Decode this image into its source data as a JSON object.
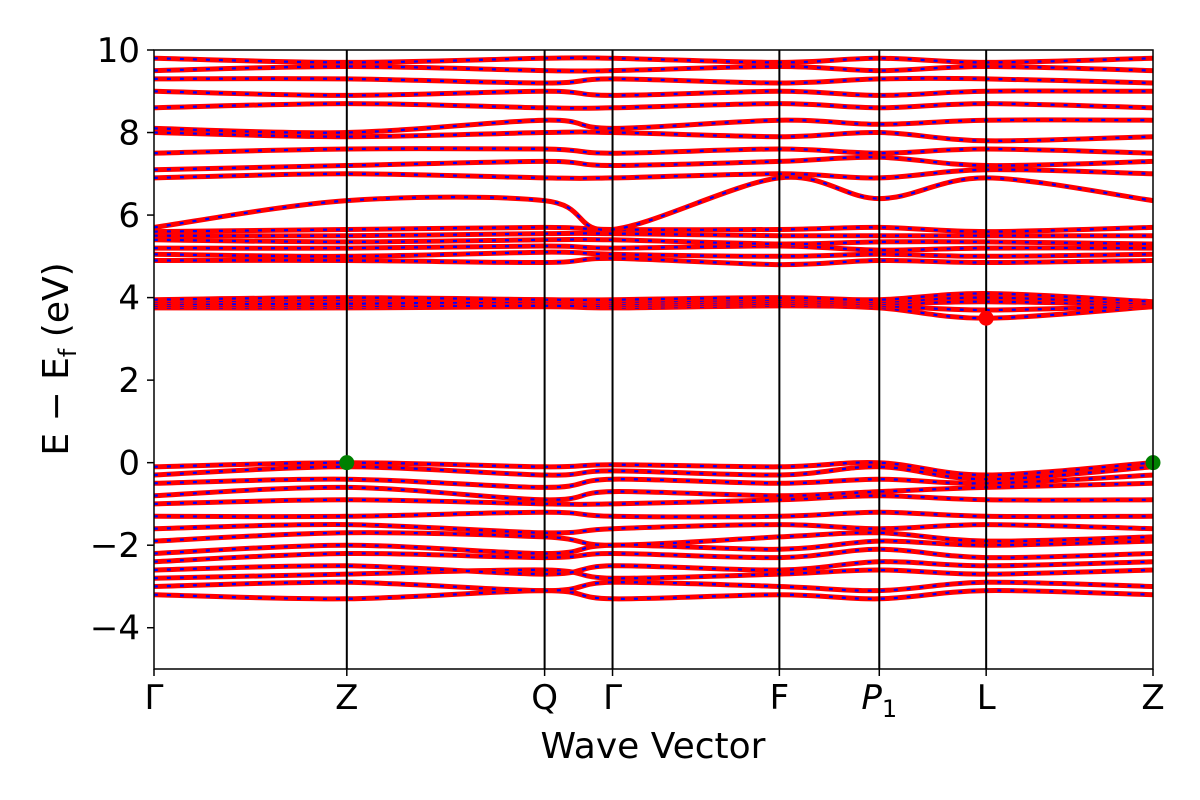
{
  "chart_data": {
    "type": "line",
    "title": "",
    "xlabel": "Wave Vector",
    "ylabel": "E − E_f (eV)",
    "ylabel_main": "E − E",
    "ylabel_sub": "f",
    "ylabel_unit": " (eV)",
    "ylim": [
      -5,
      10
    ],
    "yticks": [
      -4,
      -2,
      0,
      2,
      4,
      6,
      8,
      10
    ],
    "ytick_labels": [
      "−4",
      "−2",
      "0",
      "2",
      "4",
      "6",
      "8",
      "10"
    ],
    "kpath": {
      "labels": [
        "Γ",
        "Z",
        "Q",
        "Γ",
        "F",
        "P",
        "L",
        "Z"
      ],
      "positions": [
        0,
        0.193,
        0.391,
        0.459,
        0.626,
        0.726,
        0.833,
        1.0
      ],
      "label_subscripts": [
        "",
        "",
        "",
        "",
        "",
        "1",
        "",
        ""
      ]
    },
    "grid": false,
    "series_colors": {
      "primary": "#ff0000",
      "secondary": "#0000ff"
    },
    "markers": [
      {
        "name": "valence band maximum",
        "color": "#008000",
        "x_label": "Z",
        "x": 0.193,
        "y": 0.0
      },
      {
        "name": "valence band maximum",
        "color": "#008000",
        "x_label": "Z",
        "x": 1.0,
        "y": 0.0
      },
      {
        "name": "conduction band minimum",
        "color": "#ff0000",
        "x_label": "L",
        "x": 0.833,
        "y": 3.5
      }
    ],
    "bands": [
      {
        "ys": [
          -3.2,
          -3.3,
          -3.1,
          -3.3,
          -3.2,
          -3.3,
          -3.1,
          -3.2
        ]
      },
      {
        "ys": [
          -3.0,
          -2.9,
          -3.1,
          -2.9,
          -3.0,
          -3.1,
          -2.9,
          -3.0
        ]
      },
      {
        "ys": [
          -2.8,
          -2.7,
          -2.6,
          -2.8,
          -2.7,
          -2.6,
          -2.7,
          -2.6
        ]
      },
      {
        "ys": [
          -2.6,
          -2.5,
          -2.7,
          -2.5,
          -2.6,
          -2.4,
          -2.5,
          -2.4
        ]
      },
      {
        "ys": [
          -2.4,
          -2.2,
          -2.3,
          -2.2,
          -2.3,
          -2.1,
          -2.3,
          -2.2
        ]
      },
      {
        "ys": [
          -2.2,
          -2.0,
          -2.2,
          -2.0,
          -2.1,
          -1.9,
          -2.0,
          -1.9
        ]
      },
      {
        "ys": [
          -1.9,
          -1.7,
          -1.8,
          -2.0,
          -1.8,
          -1.7,
          -1.9,
          -1.8
        ]
      },
      {
        "ys": [
          -1.6,
          -1.5,
          -1.7,
          -1.6,
          -1.5,
          -1.6,
          -1.5,
          -1.6
        ]
      },
      {
        "ys": [
          -1.3,
          -1.3,
          -1.2,
          -1.3,
          -1.3,
          -1.2,
          -1.3,
          -1.3
        ]
      },
      {
        "ys": [
          -1.0,
          -0.9,
          -1.0,
          -1.0,
          -0.9,
          -0.8,
          -0.9,
          -0.9
        ]
      },
      {
        "ys": [
          -0.8,
          -0.6,
          -0.9,
          -0.7,
          -0.8,
          -0.7,
          -0.6,
          -0.5
        ]
      },
      {
        "ys": [
          -0.5,
          -0.4,
          -0.6,
          -0.4,
          -0.5,
          -0.4,
          -0.5,
          -0.3
        ]
      },
      {
        "ys": [
          -0.3,
          -0.1,
          -0.3,
          -0.2,
          -0.3,
          -0.1,
          -0.4,
          -0.1
        ]
      },
      {
        "ys": [
          -0.1,
          0.0,
          -0.1,
          -0.05,
          -0.1,
          0.0,
          -0.3,
          0.0
        ]
      },
      {
        "ys": [
          3.75,
          3.75,
          3.78,
          3.75,
          3.8,
          3.75,
          3.5,
          3.78
        ]
      },
      {
        "ys": [
          3.8,
          3.8,
          3.8,
          3.8,
          3.85,
          3.8,
          3.7,
          3.8
        ]
      },
      {
        "ys": [
          3.85,
          3.85,
          3.9,
          3.85,
          3.9,
          3.85,
          3.9,
          3.82
        ]
      },
      {
        "ys": [
          3.9,
          3.95,
          3.95,
          3.9,
          3.95,
          3.9,
          4.0,
          3.85
        ]
      },
      {
        "ys": [
          3.95,
          4.0,
          3.95,
          3.95,
          4.0,
          3.95,
          4.1,
          3.9
        ]
      },
      {
        "ys": [
          4.9,
          4.9,
          4.85,
          4.95,
          4.8,
          4.9,
          4.85,
          4.9
        ]
      },
      {
        "ys": [
          5.05,
          5.0,
          5.1,
          5.05,
          5.0,
          5.05,
          5.0,
          5.05
        ]
      },
      {
        "ys": [
          5.2,
          5.2,
          5.25,
          5.2,
          5.25,
          5.15,
          5.2,
          5.2
        ]
      },
      {
        "ys": [
          5.4,
          5.35,
          5.4,
          5.4,
          5.3,
          5.35,
          5.35,
          5.3
        ]
      },
      {
        "ys": [
          5.5,
          5.5,
          5.55,
          5.55,
          5.5,
          5.5,
          5.5,
          5.5
        ]
      },
      {
        "ys": [
          5.6,
          5.65,
          5.7,
          5.65,
          5.65,
          5.7,
          5.6,
          5.7
        ]
      },
      {
        "ys": [
          5.7,
          6.35,
          6.35,
          5.65,
          6.9,
          6.4,
          6.9,
          6.35
        ]
      },
      {
        "ys": [
          6.9,
          7.0,
          6.9,
          6.9,
          7.0,
          6.9,
          7.1,
          7.0
        ]
      },
      {
        "ys": [
          7.1,
          7.2,
          7.3,
          7.2,
          7.3,
          7.4,
          7.2,
          7.3
        ]
      },
      {
        "ys": [
          7.5,
          7.6,
          7.6,
          7.5,
          7.6,
          7.5,
          7.6,
          7.5
        ]
      },
      {
        "ys": [
          8.0,
          7.9,
          8.0,
          8.0,
          7.9,
          8.0,
          7.8,
          7.9
        ]
      },
      {
        "ys": [
          8.1,
          8.0,
          8.3,
          8.1,
          8.3,
          8.2,
          8.3,
          8.3
        ]
      },
      {
        "ys": [
          8.6,
          8.7,
          8.6,
          8.6,
          8.7,
          8.6,
          8.7,
          8.6
        ]
      },
      {
        "ys": [
          9.0,
          8.9,
          9.0,
          8.9,
          9.0,
          8.9,
          9.0,
          9.0
        ]
      },
      {
        "ys": [
          9.3,
          9.3,
          9.2,
          9.3,
          9.2,
          9.3,
          9.3,
          9.2
        ]
      },
      {
        "ys": [
          9.5,
          9.6,
          9.5,
          9.5,
          9.6,
          9.5,
          9.6,
          9.5
        ]
      },
      {
        "ys": [
          9.8,
          9.7,
          9.8,
          9.8,
          9.7,
          9.8,
          9.7,
          9.8
        ]
      }
    ]
  }
}
